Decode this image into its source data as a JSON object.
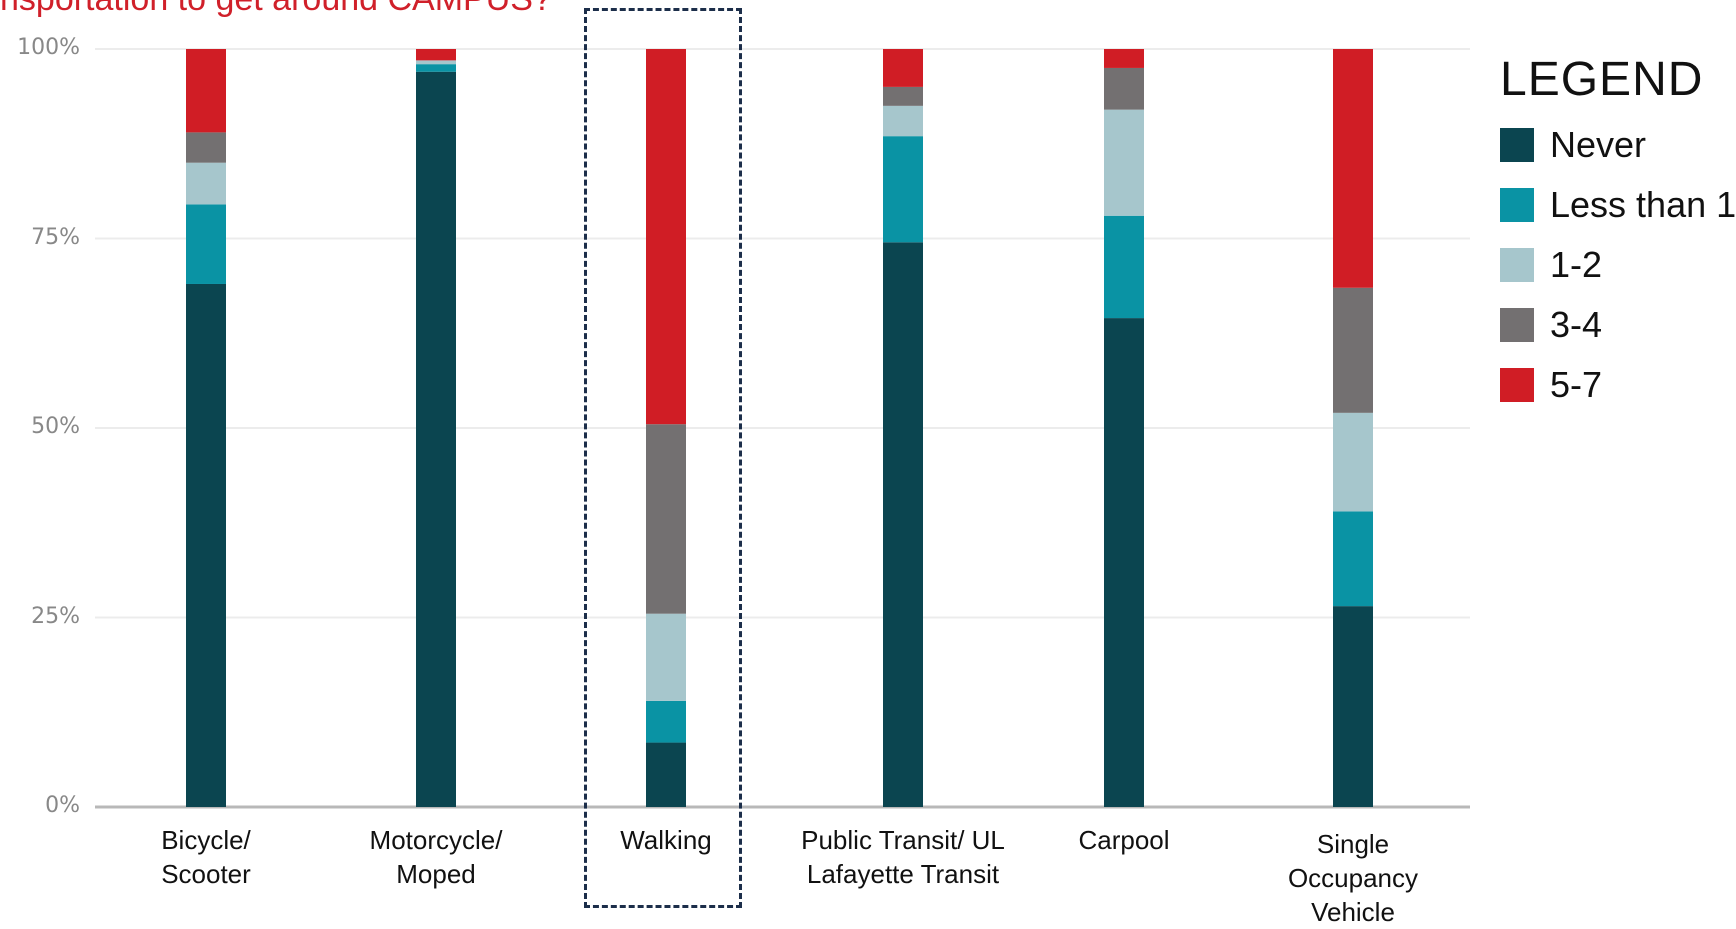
{
  "heading": "nsportation to get around CAMPUS?",
  "legend": {
    "title": "LEGEND",
    "items": [
      {
        "label": "Never",
        "color": "#0b4550"
      },
      {
        "label": "Less than 1",
        "color": "#0a93a4"
      },
      {
        "label": "1-2",
        "color": "#a6c6cc"
      },
      {
        "label": "3-4",
        "color": "#737071"
      },
      {
        "label": "5-7",
        "color": "#d01d25"
      }
    ]
  },
  "chart_data": {
    "type": "bar",
    "stacked": true,
    "categories": [
      "Bicycle/\nScooter",
      "Motorcycle/\nMoped",
      "Walking",
      "Public Transit/ UL\nLafayette Transit",
      "Carpool",
      "Single\nOccupancy\nVehicle"
    ],
    "series": [
      {
        "name": "Never",
        "color": "#0b4550",
        "values": [
          69,
          97,
          8.5,
          74.5,
          64.5,
          26.5
        ]
      },
      {
        "name": "Less than 1",
        "color": "#0a93a4",
        "values": [
          10.5,
          1,
          5.5,
          14,
          13.5,
          12.5
        ]
      },
      {
        "name": "1-2",
        "color": "#a6c6cc",
        "values": [
          5.5,
          0.5,
          11.5,
          4,
          14,
          13
        ]
      },
      {
        "name": "3-4",
        "color": "#737071",
        "values": [
          4,
          0,
          25,
          2.5,
          5.5,
          16.5
        ]
      },
      {
        "name": "5-7",
        "color": "#d01d25",
        "values": [
          11,
          1.5,
          49.5,
          5,
          2.5,
          31.5
        ]
      }
    ],
    "yticks": [
      "0%",
      "25%",
      "50%",
      "75%",
      "100%"
    ],
    "ylim": [
      0,
      100
    ],
    "grid": true,
    "legend_position": "right",
    "highlighted_category": "Walking"
  }
}
